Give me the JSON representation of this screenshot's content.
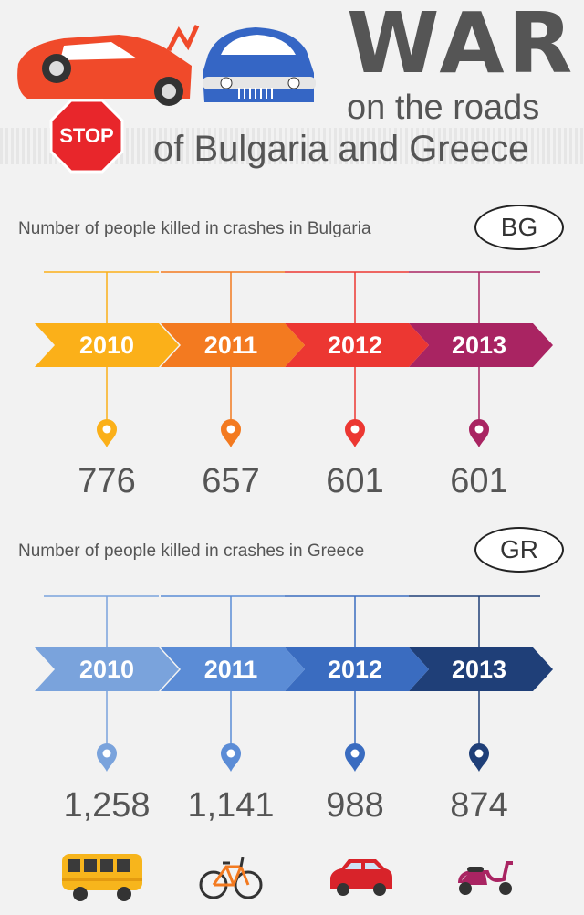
{
  "header": {
    "title_main": "WAR",
    "title_line2": "on the roads",
    "title_line3": "of Bulgaria and Greece",
    "stop_sign": "STOP"
  },
  "bulgaria": {
    "label": "Number of people killed in crashes in Bulgaria",
    "badge": "BG",
    "years": [
      "2010",
      "2011",
      "2012",
      "2013"
    ],
    "values": [
      "776",
      "657",
      "601",
      "601"
    ],
    "colors": [
      "#fbb019",
      "#f37a20",
      "#ec3732",
      "#a92462"
    ]
  },
  "greece": {
    "label": "Number of people killed in crashes in Greece",
    "badge": "GR",
    "years": [
      "2010",
      "2011",
      "2012",
      "2013"
    ],
    "values": [
      "1,258",
      "1,141",
      "988",
      "874"
    ],
    "colors": [
      "#7aa3dc",
      "#5b8cd6",
      "#3a6cc0",
      "#1f3f78"
    ]
  },
  "vehicles": [
    "bus-icon",
    "bicycle-icon",
    "car-icon",
    "scooter-icon"
  ]
}
